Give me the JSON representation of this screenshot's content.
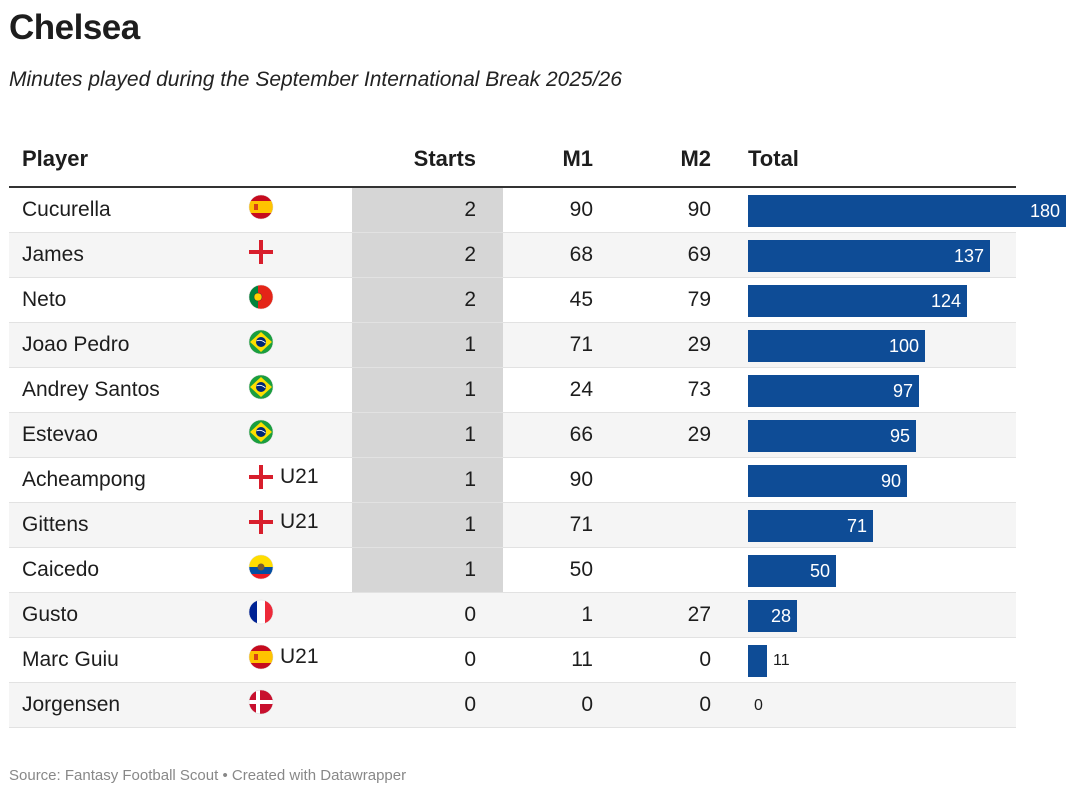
{
  "header": {
    "title": "Chelsea",
    "subtitle": "Minutes played during the September International Break 2025/26"
  },
  "columns": {
    "player": "Player",
    "starts": "Starts",
    "m1": "M1",
    "m2": "M2",
    "total": "Total"
  },
  "footer": {
    "source": "Source: Fantasy Football Scout • Created with Datawrapper"
  },
  "colors": {
    "bar": "#0e4c96",
    "starts_highlight": "#d6d6d6",
    "row_stripe": "#f5f5f5"
  },
  "chart_data": {
    "type": "table",
    "title": "Chelsea",
    "subtitle": "Minutes played during the September International Break 2025/26",
    "max_total": 180,
    "rows": [
      {
        "player": "Cucurella",
        "flag": "spain-flag-icon",
        "team": "",
        "starts": "2",
        "m1": "90",
        "m2": "90",
        "total": 180
      },
      {
        "player": "James",
        "flag": "england-flag-icon",
        "team": "",
        "starts": "2",
        "m1": "68",
        "m2": "69",
        "total": 137
      },
      {
        "player": "Neto",
        "flag": "portugal-flag-icon",
        "team": "",
        "starts": "2",
        "m1": "45",
        "m2": "79",
        "total": 124
      },
      {
        "player": "Joao Pedro",
        "flag": "brazil-flag-icon",
        "team": "",
        "starts": "1",
        "m1": "71",
        "m2": "29",
        "total": 100
      },
      {
        "player": "Andrey Santos",
        "flag": "brazil-flag-icon",
        "team": "",
        "starts": "1",
        "m1": "24",
        "m2": "73",
        "total": 97
      },
      {
        "player": "Estevao",
        "flag": "brazil-flag-icon",
        "team": "",
        "starts": "1",
        "m1": "66",
        "m2": "29",
        "total": 95
      },
      {
        "player": "Acheampong",
        "flag": "england-flag-icon",
        "team": "U21",
        "starts": "1",
        "m1": "90",
        "m2": "",
        "total": 90
      },
      {
        "player": "Gittens",
        "flag": "england-flag-icon",
        "team": "U21",
        "starts": "1",
        "m1": "71",
        "m2": "",
        "total": 71
      },
      {
        "player": "Caicedo",
        "flag": "ecuador-flag-icon",
        "team": "",
        "starts": "1",
        "m1": "50",
        "m2": "",
        "total": 50
      },
      {
        "player": "Gusto",
        "flag": "france-flag-icon",
        "team": "",
        "starts": "0",
        "m1": "1",
        "m2": "27",
        "total": 28
      },
      {
        "player": "Marc Guiu",
        "flag": "spain-flag-icon",
        "team": "U21",
        "starts": "0",
        "m1": "11",
        "m2": "0",
        "total": 11
      },
      {
        "player": "Jorgensen",
        "flag": "denmark-flag-icon",
        "team": "",
        "starts": "0",
        "m1": "0",
        "m2": "0",
        "total": 0
      }
    ]
  }
}
